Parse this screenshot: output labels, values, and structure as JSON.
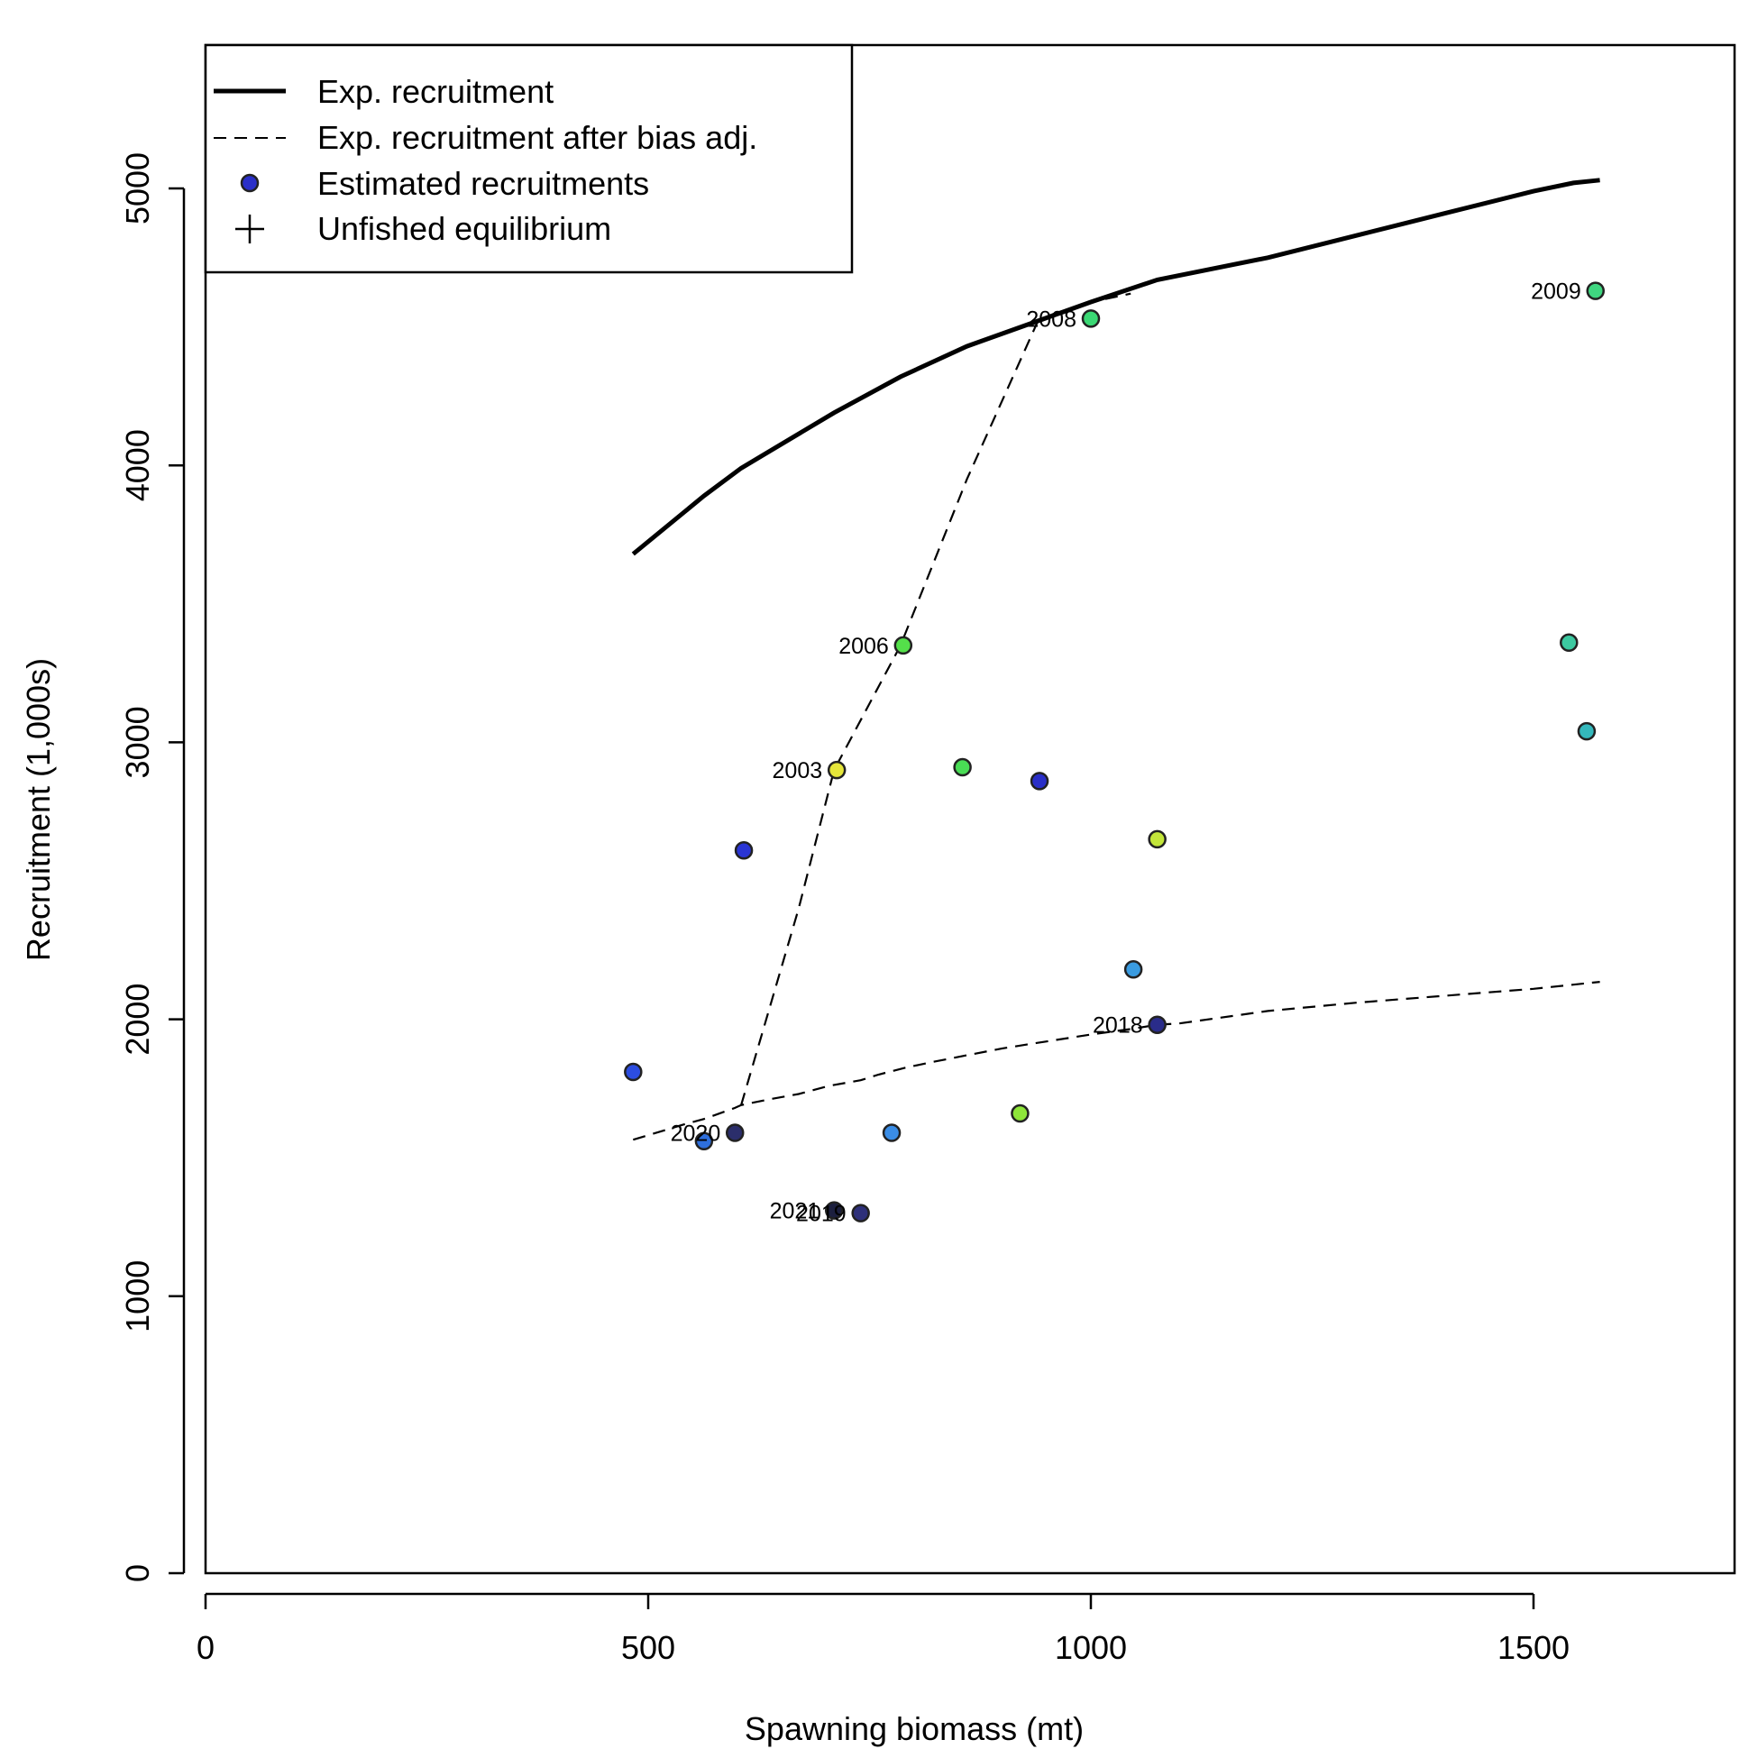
{
  "chart_data": {
    "type": "scatter",
    "xlabel": "Spawning biomass (mt)",
    "ylabel": "Recruitment (1,000s)",
    "xlim": [
      0,
      1725
    ],
    "ylim": [
      0,
      5500
    ],
    "x_ticks": [
      0,
      500,
      1000,
      1500
    ],
    "y_ticks": [
      0,
      1000,
      2000,
      3000,
      4000,
      5000
    ],
    "legend": {
      "position": "top-left",
      "entries": [
        {
          "label": "Exp. recruitment",
          "symbol": "solid-line"
        },
        {
          "label": "Exp. recruitment after bias adj.",
          "symbol": "dashed-line"
        },
        {
          "label": "Estimated recruitments",
          "symbol": "circle"
        },
        {
          "label": "Unfished equilibrium",
          "symbol": "plus"
        }
      ]
    },
    "exp_recruitment": {
      "x": [
        483,
        563,
        605,
        710,
        785,
        860,
        1000,
        1075,
        1200,
        1300,
        1400,
        1500,
        1545,
        1575
      ],
      "y": [
        3680,
        3890,
        3990,
        4190,
        4320,
        4430,
        4590,
        4670,
        4750,
        4830,
        4910,
        4990,
        5020,
        5030
      ]
    },
    "exp_recruitment_bias_adj": {
      "x": [
        483,
        540,
        563,
        598,
        605,
        635,
        670,
        705,
        740,
        760,
        790,
        820,
        860,
        900,
        940,
        1000,
        1045,
        1075,
        1100,
        1200,
        1300,
        1400,
        1500,
        1545,
        1575
      ],
      "y": [
        1565,
        1620,
        1640,
        1680,
        1690,
        1710,
        1730,
        1760,
        1780,
        1800,
        1825,
        1845,
        1870,
        1895,
        1915,
        1945,
        1965,
        1980,
        1985,
        2030,
        2060,
        2085,
        2110,
        2125,
        2135
      ]
    },
    "bias_adj_connector": {
      "x": [
        605,
        670,
        710,
        785,
        860,
        940,
        960,
        1000,
        1045
      ],
      "y": [
        1690,
        2400,
        2900,
        3350,
        3950,
        4520,
        4550,
        4590,
        4620
      ]
    },
    "estimated_recruitments": [
      {
        "x": 483,
        "y": 1810,
        "color": "#2c4de0"
      },
      {
        "x": 563,
        "y": 1560,
        "color": "#2e6fdc"
      },
      {
        "x": 598,
        "y": 1590,
        "color": "#2b2e6b",
        "label": "2020"
      },
      {
        "x": 608,
        "y": 2610,
        "color": "#2a35d4"
      },
      {
        "x": 710,
        "y": 1310,
        "color": "#1c1f3f",
        "label": "2021"
      },
      {
        "x": 713,
        "y": 2900,
        "color": "#e5e63a",
        "label": "2003"
      },
      {
        "x": 740,
        "y": 1300,
        "color": "#2e307a",
        "label": "2019"
      },
      {
        "x": 775,
        "y": 1590,
        "color": "#3a8de6"
      },
      {
        "x": 788,
        "y": 3350,
        "color": "#54e04a",
        "label": "2006"
      },
      {
        "x": 855,
        "y": 2910,
        "color": "#49dc55"
      },
      {
        "x": 920,
        "y": 1660,
        "color": "#8ee63a"
      },
      {
        "x": 942,
        "y": 2860,
        "color": "#2a2fc8"
      },
      {
        "x": 1000,
        "y": 4530,
        "color": "#3bd874",
        "label": "2008"
      },
      {
        "x": 1048,
        "y": 2180,
        "color": "#3a9be0"
      },
      {
        "x": 1075,
        "y": 2650,
        "color": "#c3e63a"
      },
      {
        "x": 1075,
        "y": 1980,
        "color": "#2a2c8a",
        "label": "2018"
      },
      {
        "x": 1540,
        "y": 3360,
        "color": "#3cc9a0"
      },
      {
        "x": 1560,
        "y": 3040,
        "color": "#34b8bc"
      },
      {
        "x": 1570,
        "y": 4630,
        "color": "#3fd680",
        "label": "2009"
      }
    ]
  }
}
